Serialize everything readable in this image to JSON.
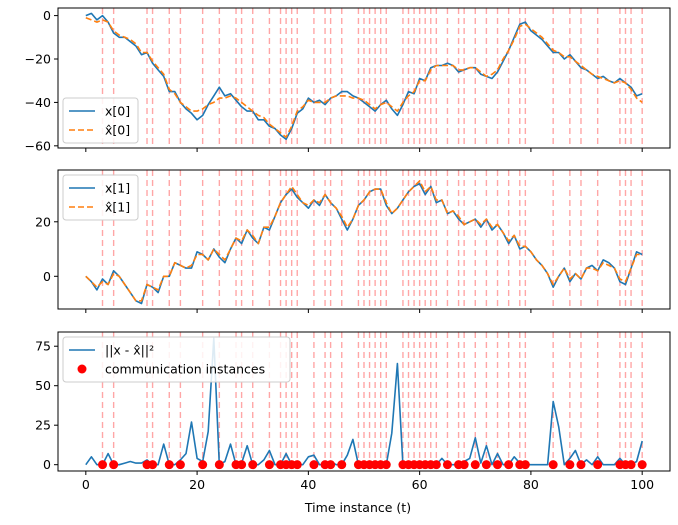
{
  "chart_data": [
    {
      "type": "line",
      "panel": "top",
      "ylim": [
        -61,
        3.5
      ],
      "xlim": [
        -5,
        105
      ],
      "yticks": [
        0,
        -20,
        -40,
        -60
      ],
      "xticks": [
        0,
        20,
        40,
        60,
        80,
        100
      ],
      "show_xticklabels": false,
      "legend_position": "lower-left",
      "series": [
        {
          "name": "x[0]",
          "color": "#1f77b4",
          "style": "solid",
          "values": [
            0,
            1,
            -2,
            0,
            -3,
            -8,
            -10,
            -10,
            -12,
            -14,
            -18,
            -17,
            -22,
            -25,
            -28,
            -35,
            -35,
            -40,
            -43,
            -45,
            -48,
            -46,
            -41,
            -37,
            -33,
            -37,
            -36,
            -39,
            -42,
            -44,
            -44,
            -48,
            -48,
            -51,
            -52,
            -55,
            -57,
            -52,
            -45,
            -43,
            -38,
            -40,
            -39,
            -41,
            -38,
            -37,
            -35,
            -35,
            -37,
            -38,
            -40,
            -42,
            -44,
            -41,
            -39,
            -43,
            -46,
            -41,
            -35,
            -36,
            -29,
            -30,
            -24,
            -23,
            -23,
            -22,
            -23,
            -26,
            -25,
            -24,
            -24,
            -27,
            -28,
            -29,
            -26,
            -21,
            -16,
            -10,
            -4,
            -3,
            -7,
            -9,
            -11,
            -14,
            -17,
            -17,
            -20,
            -18,
            -21,
            -24,
            -25,
            -27,
            -29,
            -28,
            -30,
            -31,
            -29,
            -31,
            -33,
            -37,
            -36
          ]
        },
        {
          "name": "x̂[0]",
          "color": "#ff7f0e",
          "style": "dashed",
          "values": [
            -1,
            -2,
            -3,
            -2,
            -3,
            -7,
            -9,
            -10,
            -11,
            -13,
            -17,
            -17,
            -21,
            -24,
            -27,
            -34,
            -36,
            -40,
            -42,
            -44,
            -44,
            -43,
            -41,
            -40,
            -38,
            -38,
            -37,
            -38,
            -40,
            -42,
            -44,
            -46,
            -47,
            -50,
            -52,
            -54,
            -56,
            -51,
            -44,
            -42,
            -39,
            -40,
            -40,
            -40,
            -38,
            -37,
            -37,
            -37,
            -38,
            -38,
            -39,
            -41,
            -43,
            -41,
            -40,
            -42,
            -44,
            -40,
            -37,
            -35,
            -30,
            -30,
            -25,
            -23,
            -23,
            -23,
            -23,
            -25,
            -25,
            -24,
            -24,
            -26,
            -28,
            -27,
            -25,
            -20,
            -16,
            -11,
            -5,
            -4,
            -6,
            -8,
            -10,
            -13,
            -16,
            -17,
            -19,
            -19,
            -21,
            -23,
            -25,
            -27,
            -28,
            -29,
            -30,
            -31,
            -30,
            -31,
            -34,
            -38,
            -40
          ]
        }
      ]
    },
    {
      "type": "line",
      "panel": "middle",
      "ylim": [
        -12,
        39
      ],
      "xlim": [
        -5,
        105
      ],
      "yticks": [
        0,
        20
      ],
      "xticks": [
        0,
        20,
        40,
        60,
        80,
        100
      ],
      "show_xticklabels": false,
      "legend_position": "top-left",
      "series": [
        {
          "name": "x[1]",
          "color": "#1f77b4",
          "style": "solid",
          "values": [
            0,
            -2,
            -5,
            -1,
            -3,
            2,
            0,
            -3,
            -6,
            -9,
            -10,
            -3,
            -4,
            -6,
            0,
            0,
            5,
            4,
            3,
            3,
            9,
            8,
            6,
            10,
            7,
            5,
            10,
            14,
            12,
            17,
            14,
            12,
            18,
            17,
            22,
            27,
            30,
            32,
            29,
            27,
            25,
            28,
            26,
            30,
            27,
            25,
            21,
            17,
            21,
            26,
            28,
            31,
            32,
            32,
            26,
            23,
            25,
            28,
            31,
            33,
            34,
            30,
            33,
            27,
            28,
            23,
            24,
            21,
            19,
            20,
            21,
            18,
            21,
            17,
            19,
            16,
            12,
            15,
            10,
            11,
            9,
            6,
            4,
            1,
            -4,
            0,
            3,
            -2,
            1,
            -1,
            3,
            4,
            2,
            6,
            5,
            3,
            -2,
            -3,
            3,
            9,
            8
          ]
        },
        {
          "name": "x̂[1]",
          "color": "#ff7f0e",
          "style": "dashed",
          "values": [
            0,
            -2,
            -4,
            -2,
            -3,
            1,
            0,
            -3,
            -6,
            -9,
            -9,
            -3,
            -4,
            -5,
            0,
            0,
            5,
            4,
            3,
            4,
            8,
            8,
            6,
            10,
            8,
            6,
            10,
            14,
            13,
            17,
            15,
            12,
            18,
            18,
            22,
            27,
            30,
            33,
            30,
            27,
            26,
            28,
            27,
            30,
            27,
            25,
            22,
            18,
            21,
            26,
            28,
            31,
            32,
            32,
            27,
            23,
            25,
            28,
            31,
            33,
            35,
            31,
            33,
            28,
            28,
            23,
            24,
            22,
            19,
            20,
            21,
            19,
            21,
            18,
            19,
            16,
            13,
            15,
            11,
            11,
            9,
            6,
            4,
            1,
            -3,
            0,
            3,
            -1,
            1,
            -1,
            3,
            3,
            2,
            5,
            4,
            3,
            -1,
            -2,
            3,
            8,
            8
          ]
        }
      ]
    },
    {
      "type": "line+scatter",
      "panel": "bottom",
      "ylim": [
        -4,
        84
      ],
      "xlim": [
        -5,
        105
      ],
      "yticks": [
        0,
        25,
        50,
        75
      ],
      "xticks": [
        0,
        20,
        40,
        60,
        80,
        100
      ],
      "xlabel": "Time instance (t)",
      "legend_position": "top-left",
      "series": [
        {
          "name": "||x - x̂||²",
          "color": "#1f77b4",
          "style": "solid",
          "values": [
            0,
            5,
            0,
            0,
            7,
            0,
            0,
            1,
            2,
            1,
            1,
            3,
            0,
            0,
            13,
            0,
            0,
            3,
            7,
            27,
            4,
            2,
            21,
            80,
            0,
            2,
            13,
            0,
            1,
            12,
            0,
            0,
            3,
            9,
            0,
            0,
            7,
            0,
            0,
            0,
            5,
            6,
            0,
            0,
            2,
            0,
            0,
            6,
            16,
            0,
            0,
            0,
            0,
            0,
            0,
            20,
            64,
            0,
            0,
            0,
            1,
            0,
            0,
            0,
            4,
            0,
            0,
            0,
            2,
            4,
            17,
            1,
            12,
            0,
            7,
            0,
            0,
            5,
            1,
            0,
            0,
            0,
            0,
            0,
            40,
            24,
            0,
            4,
            9,
            0,
            3,
            0,
            5,
            0,
            0,
            0,
            4,
            0,
            0,
            2,
            15
          ]
        },
        {
          "name": "communication instances",
          "color": "#ff0000",
          "style": "scatter",
          "x": [
            3,
            5,
            11,
            12,
            15,
            17,
            21,
            24,
            27,
            28,
            30,
            33,
            35,
            36,
            37,
            38,
            41,
            43,
            44,
            46,
            49,
            50,
            51,
            52,
            53,
            54,
            57,
            58,
            59,
            60,
            61,
            62,
            63,
            65,
            67,
            68,
            70,
            72,
            74,
            76,
            78,
            79,
            84,
            87,
            89,
            92,
            96,
            97,
            98,
            100
          ],
          "y": [
            0,
            0,
            0,
            0,
            0,
            0,
            0,
            0,
            0,
            0,
            0,
            0,
            0,
            0,
            0,
            0,
            0,
            0,
            0,
            0,
            0,
            0,
            0,
            0,
            0,
            0,
            0,
            0,
            0,
            0,
            0,
            0,
            0,
            0,
            0,
            0,
            0,
            0,
            0,
            0,
            0,
            0,
            0,
            0,
            0,
            0,
            0,
            0,
            0,
            0
          ]
        }
      ]
    }
  ]
}
